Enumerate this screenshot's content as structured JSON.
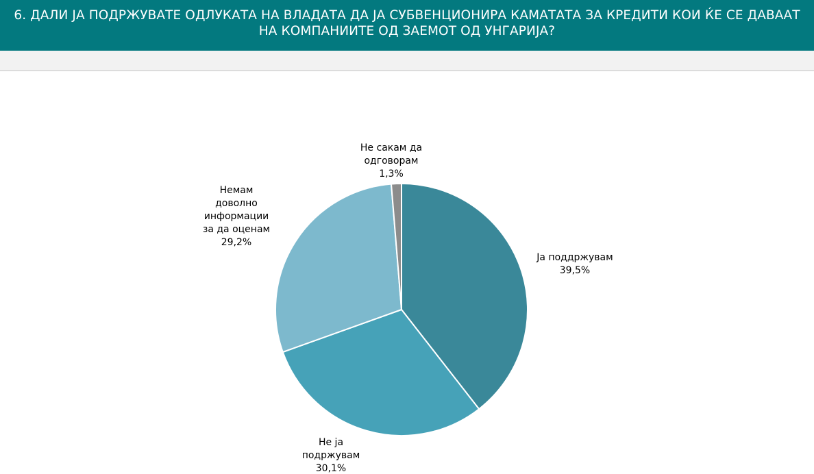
{
  "header": {
    "title": "6. ДАЛИ ЈА ПОДРЖУВАТЕ ОДЛУКАТА НА ВЛАДАТА ДА ЈА СУБВЕНЦИОНИРА КАМАТАТА ЗА КРЕДИТИ КОИ ЌЕ СЕ ДАВААТ НА КОМПАНИИТЕ ОД ЗАЕМОТ ОД УНГАРИЈА?"
  },
  "colors": {
    "header_bg": "#03797f",
    "band_bg": "#f2f2f2"
  },
  "chart_data": {
    "type": "pie",
    "title": "",
    "slices": [
      {
        "label_lines": [
          "Ја поддржувам"
        ],
        "value": 39.5,
        "value_label": "39,5%",
        "color": "#3a8899"
      },
      {
        "label_lines": [
          "Не ја",
          "подржувам"
        ],
        "value": 30.1,
        "value_label": "30,1%",
        "color": "#46a2b8"
      },
      {
        "label_lines": [
          "Немам",
          "доволно",
          "информации",
          "за да оценам"
        ],
        "value": 29.2,
        "value_label": "29,2%",
        "color": "#7db9cd"
      },
      {
        "label_lines": [
          "Не сакам да",
          "одговорам"
        ],
        "value": 1.3,
        "value_label": "1,3%",
        "color": "#8c8c8c"
      }
    ],
    "start_angle_deg": 0,
    "direction": "clockwise",
    "slice_border_color": "#ffffff"
  }
}
